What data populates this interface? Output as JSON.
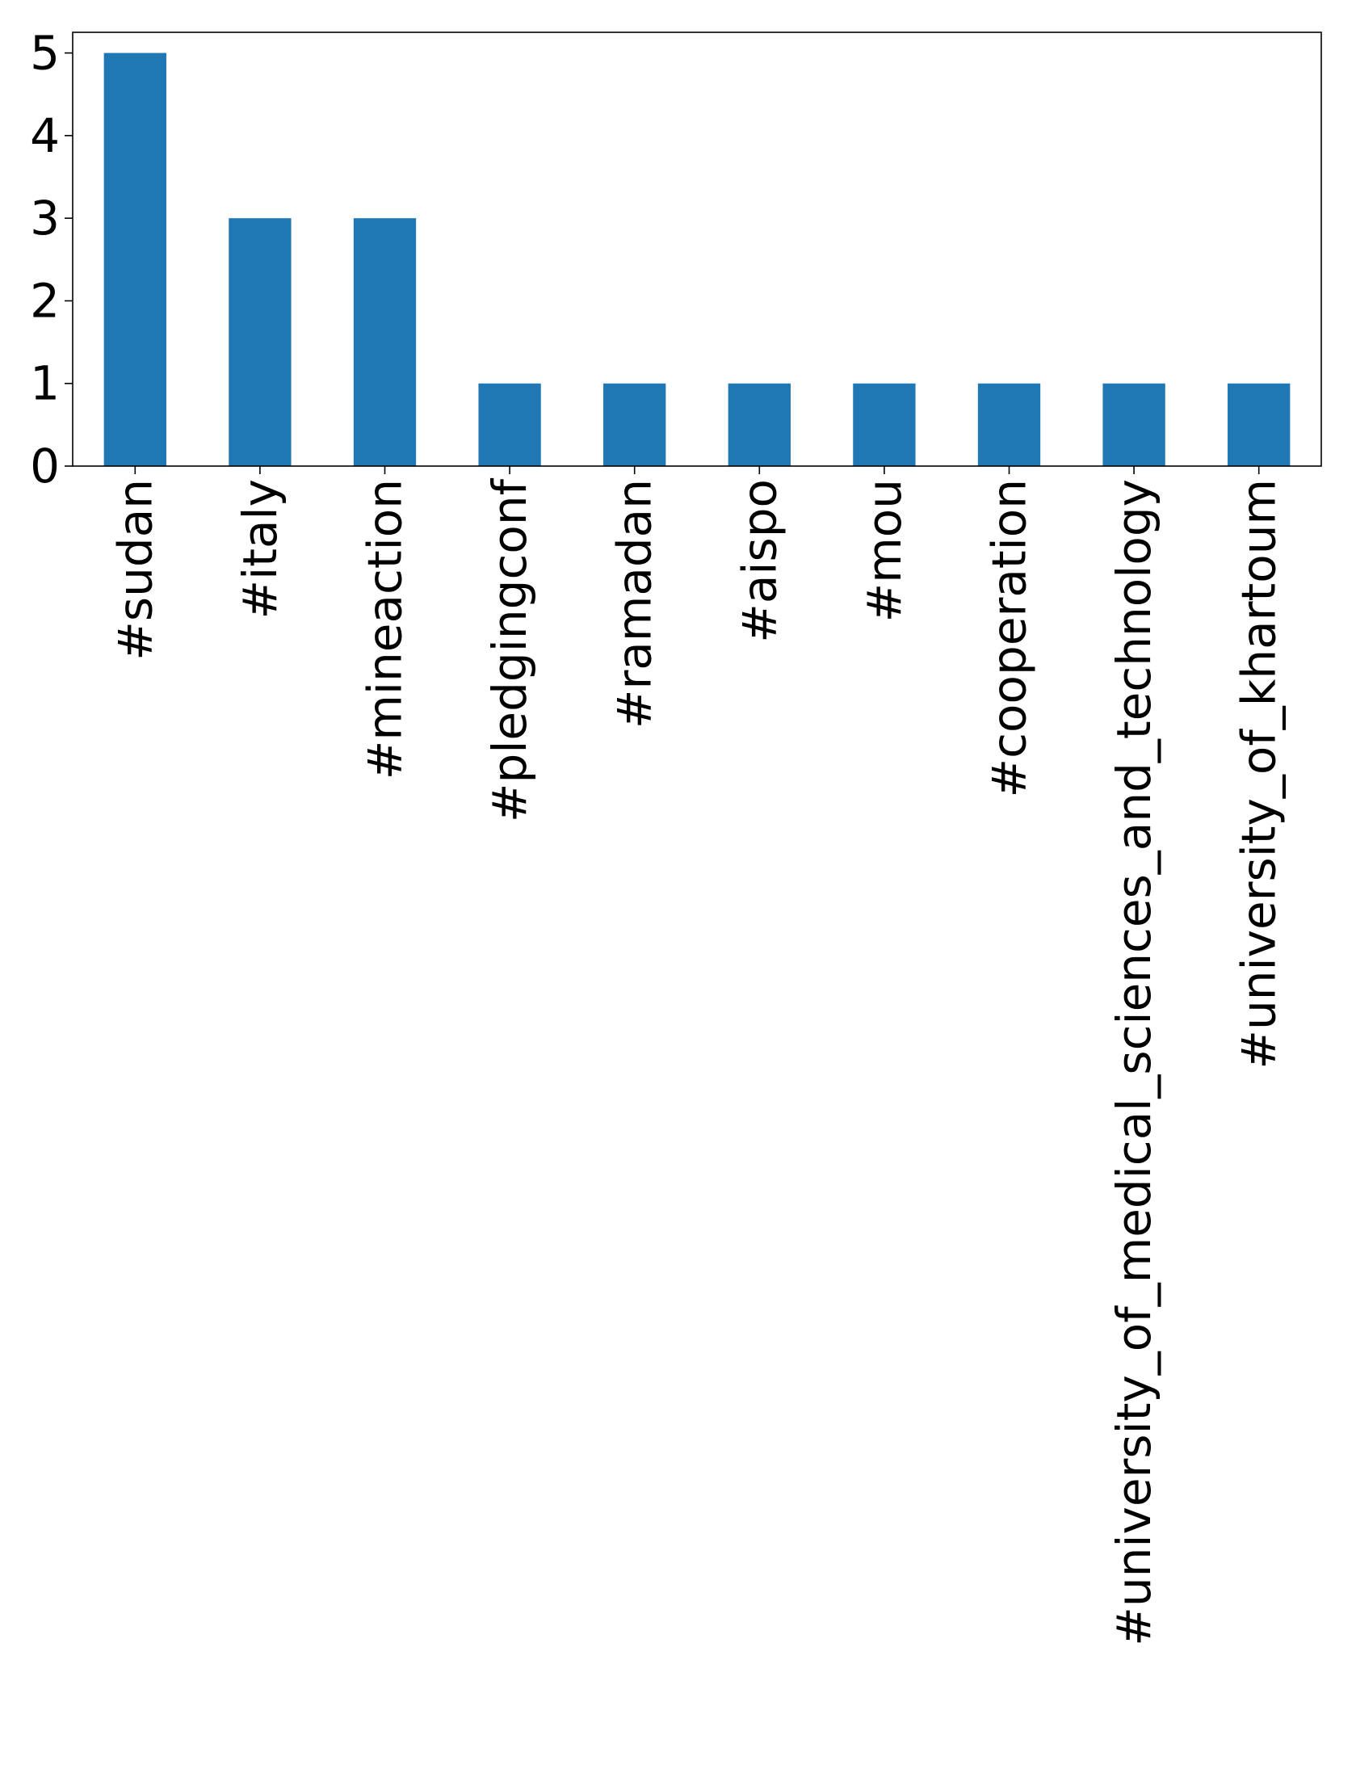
{
  "chart_data": {
    "type": "bar",
    "title": "",
    "xlabel": "",
    "ylabel": "",
    "categories": [
      "#sudan",
      "#italy",
      "#mineaction",
      "#pledgingconf",
      "#ramadan",
      "#aispo",
      "#mou",
      "#cooperation",
      "#university_of_medical_sciences_and_technology",
      "#university_of_khartoum"
    ],
    "values": [
      5,
      3,
      3,
      1,
      1,
      1,
      1,
      1,
      1,
      1
    ],
    "ylim": [
      0,
      5.25
    ],
    "yticks": [
      "0",
      "1",
      "2",
      "3",
      "4",
      "5"
    ],
    "bar_color": "#1f77b4",
    "grid": false,
    "legend": "none",
    "x_tick_rotation": "vertical"
  }
}
